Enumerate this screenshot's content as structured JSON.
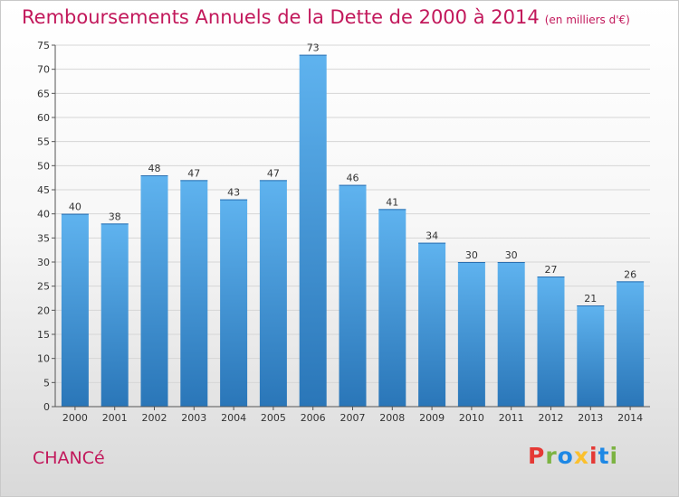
{
  "header": {
    "title": "Remboursements Annuels de la Dette de 2000 à 2014",
    "unit": "(en milliers d'€)"
  },
  "footer": {
    "commune": "CHANCé",
    "logo": {
      "letters": [
        "P",
        "r",
        "o",
        "x",
        "i",
        "t",
        "i"
      ],
      "colors": [
        "#e53935",
        "#7cb342",
        "#1e88e5",
        "#fbc02d",
        "#e53935",
        "#1e88e5",
        "#7cb342"
      ]
    }
  },
  "colors": {
    "title": "#c2185b",
    "bar_top": "#5fb3ef",
    "bar_bottom": "#2a76b8"
  },
  "chart_data": {
    "type": "bar",
    "title": "Remboursements Annuels de la Dette de 2000 à 2014",
    "categories": [
      "2000",
      "2001",
      "2002",
      "2003",
      "2004",
      "2005",
      "2006",
      "2007",
      "2008",
      "2009",
      "2010",
      "2011",
      "2012",
      "2013",
      "2014"
    ],
    "values": [
      40,
      38,
      48,
      47,
      43,
      47,
      73,
      46,
      41,
      34,
      30,
      30,
      27,
      21,
      26
    ],
    "yticks": [
      0,
      5,
      10,
      15,
      20,
      25,
      30,
      35,
      40,
      45,
      50,
      55,
      60,
      65,
      70,
      75
    ],
    "ylim": [
      0,
      75
    ],
    "grid": true,
    "xlabel": "",
    "ylabel": ""
  }
}
